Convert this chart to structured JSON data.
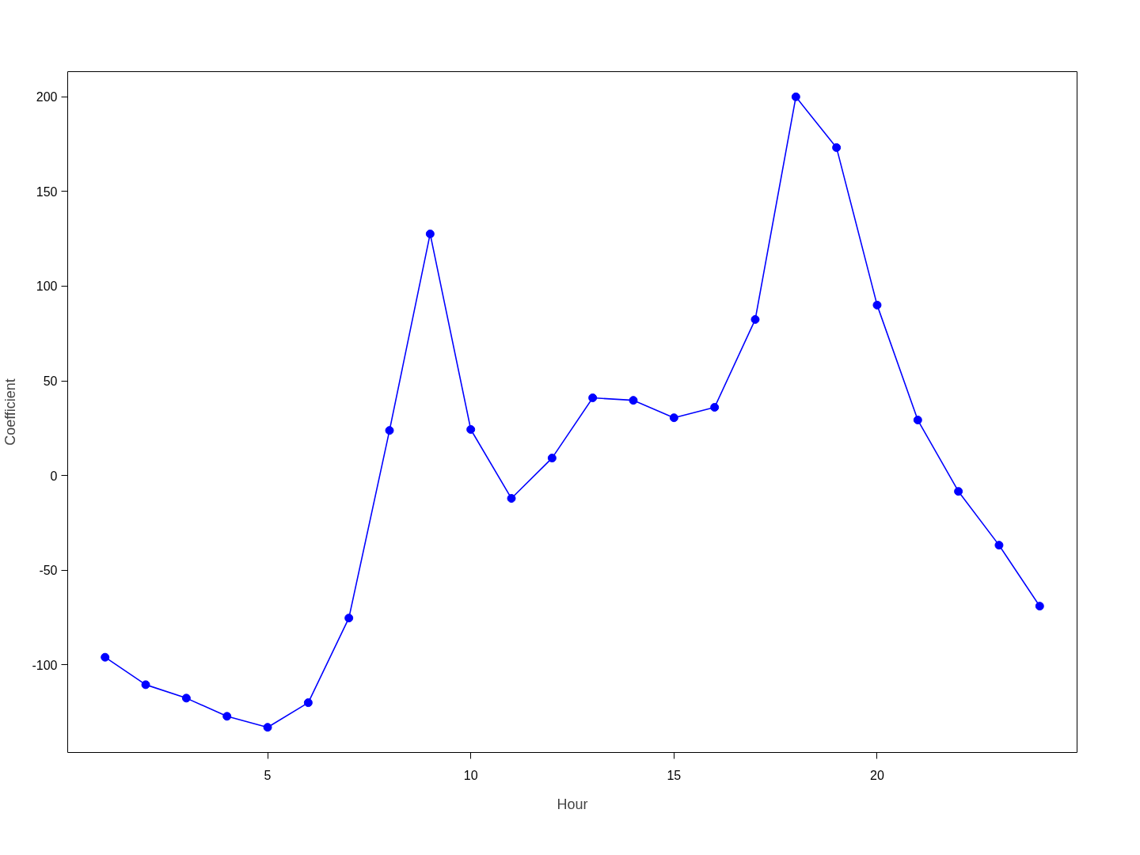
{
  "chart_data": {
    "type": "line",
    "xlabel": "Hour",
    "ylabel": "Coefficient",
    "x": [
      1,
      2,
      3,
      4,
      5,
      6,
      7,
      8,
      9,
      10,
      11,
      12,
      13,
      14,
      15,
      16,
      17,
      18,
      19,
      20,
      21,
      22,
      23,
      24
    ],
    "series": [
      {
        "color": "#0000ff",
        "values": [
          -96,
          -110.5,
          -117.6,
          -127.2,
          -133,
          -120,
          -75.3,
          23.8,
          127.6,
          24.3,
          -12.1,
          9.2,
          41,
          39.7,
          30.5,
          36,
          82.4,
          200,
          173.2,
          90,
          29.3,
          -8.4,
          -36.8,
          -69
        ]
      }
    ],
    "xlim": [
      0.08,
      24.92
    ],
    "ylim": [
      -146.3,
      213.3
    ],
    "xticks": [
      5,
      10,
      15,
      20
    ],
    "yticks": [
      -100,
      -50,
      0,
      50,
      100,
      150,
      200
    ],
    "marker": "circle",
    "line_style": "solid"
  }
}
